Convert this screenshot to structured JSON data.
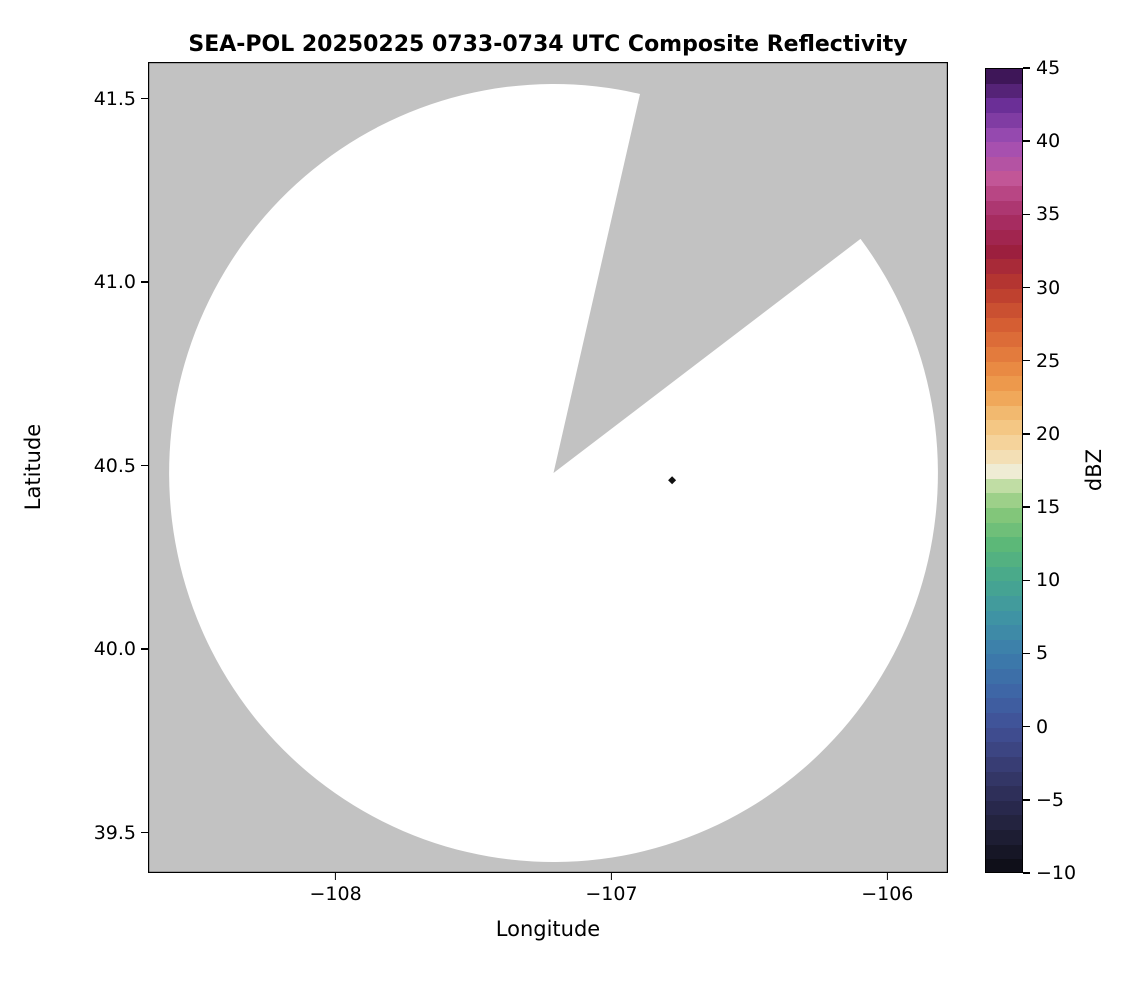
{
  "chart_data": {
    "type": "heatmap",
    "title": "SEA-POL 20250225 0733-0734 UTC Composite Reflectivity",
    "xlabel": "Longitude",
    "ylabel": "Latitude",
    "xlim": [
      -108.68,
      -105.78
    ],
    "ylim": [
      39.39,
      41.6
    ],
    "x_ticks": [
      -108,
      -107,
      -106
    ],
    "x_tick_labels": [
      "−108",
      "−107",
      "−106"
    ],
    "y_ticks": [
      39.5,
      40.0,
      40.5,
      41.0,
      41.5
    ],
    "y_tick_labels": [
      "39.5",
      "40.0",
      "40.5",
      "41.0",
      "41.5"
    ],
    "grid": false,
    "radar_coverage": {
      "center_lon": -107.21,
      "center_lat": 40.48,
      "radius_deg_lat": 1.06,
      "blocked_sector_azimuth_deg": [
        13,
        53
      ],
      "coverage_color": "#ffffff",
      "no_data_color": "#c2c2c2"
    },
    "echoes": [
      {
        "lon": -106.78,
        "lat": 40.46,
        "color": "#111111"
      }
    ],
    "colorbar": {
      "label": "dBZ",
      "min": -10,
      "max": 45,
      "ticks": [
        45,
        40,
        35,
        30,
        25,
        20,
        15,
        10,
        5,
        0,
        -5,
        -10
      ],
      "tick_labels": [
        "45",
        "40",
        "35",
        "30",
        "25",
        "20",
        "15",
        "10",
        "5",
        "0",
        "−5",
        "−10"
      ],
      "stops": [
        [
          -10,
          "#0c0c13"
        ],
        [
          -7.5,
          "#1d1d33"
        ],
        [
          -5,
          "#2b2b52"
        ],
        [
          -2.5,
          "#383d74"
        ],
        [
          0,
          "#415096"
        ],
        [
          2.5,
          "#3e66a6"
        ],
        [
          5,
          "#3c7dab"
        ],
        [
          7.5,
          "#3f93a4"
        ],
        [
          10,
          "#46a78f"
        ],
        [
          12.5,
          "#5cb878"
        ],
        [
          15,
          "#8bc97b"
        ],
        [
          16.5,
          "#c0dda4"
        ],
        [
          17.5,
          "#efecd4"
        ],
        [
          19,
          "#f5d9a6"
        ],
        [
          21,
          "#f3c179"
        ],
        [
          23,
          "#efa050"
        ],
        [
          25,
          "#e7823f"
        ],
        [
          27.5,
          "#d55e33"
        ],
        [
          30,
          "#ba3a2e"
        ],
        [
          32.5,
          "#9c1f3e"
        ],
        [
          35,
          "#a82f68"
        ],
        [
          37.5,
          "#c25697"
        ],
        [
          40,
          "#a04fb5"
        ],
        [
          42.5,
          "#6b2f97"
        ],
        [
          45,
          "#331048"
        ]
      ]
    }
  }
}
